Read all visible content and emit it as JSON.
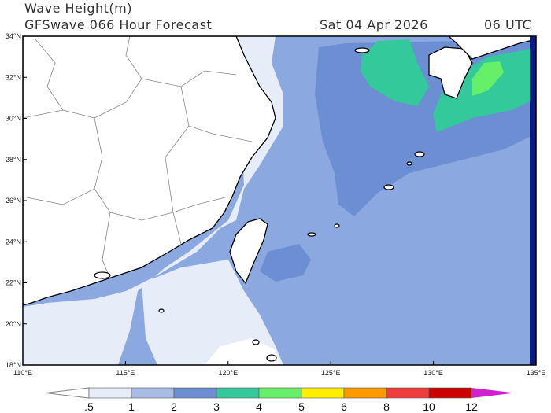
{
  "title": "Wave Height(m)",
  "subtitle": "GFSwave 066 Hour Forecast",
  "valid_date": "Sat 04 Apr 2026",
  "valid_hour": "06 UTC",
  "map": {
    "lon_range": [
      110,
      135
    ],
    "lat_range": [
      18,
      34
    ],
    "lat_ticks": [
      "18°N",
      "20°N",
      "22°N",
      "24°N",
      "26°N",
      "28°N",
      "30°N",
      "32°N",
      "34°N"
    ],
    "lon_ticks": [
      "110°E",
      "115°E",
      "120°E",
      "125°E",
      "130°E",
      "135°E"
    ],
    "land_color": "#ffffff"
  },
  "colorbar": {
    "labels": [
      ".5",
      "1",
      "2",
      "3",
      "4",
      "5",
      "6",
      "8",
      "10",
      "12"
    ],
    "colors": [
      "#e6ecf8",
      "#a7bde6",
      "#6b8fd2",
      "#33c99a",
      "#66f06a",
      "#ffee00",
      "#ff9900",
      "#f03c3c",
      "#cc0000"
    ],
    "under_color": "#ffffff",
    "over_color": "#d020d0"
  }
}
